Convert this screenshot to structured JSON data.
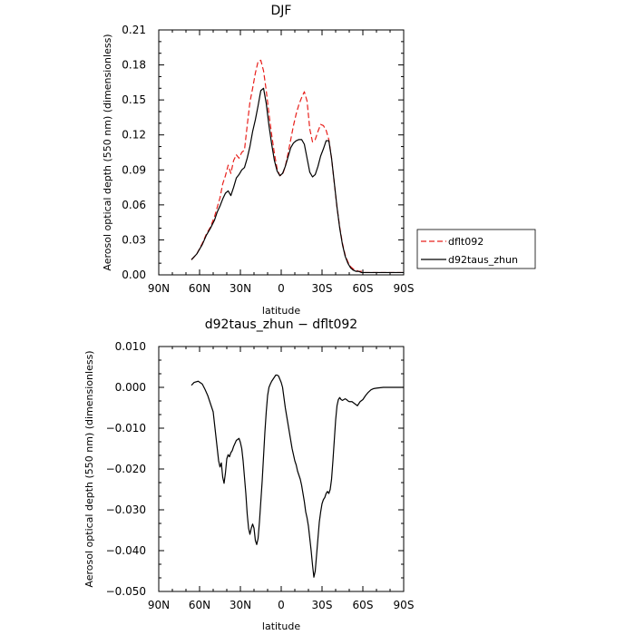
{
  "chart_data": [
    {
      "type": "line",
      "title": "DJF",
      "xlabel": "latitude",
      "ylabel": "Aerosol optical depth (550 nm) (dimensionless)",
      "xlim": [
        90,
        -90
      ],
      "ylim": [
        0,
        0.21
      ],
      "x_ticks": [
        90,
        60,
        30,
        0,
        -30,
        -60,
        -90
      ],
      "x_tick_labels": [
        "90N",
        "60N",
        "30N",
        "0",
        "30S",
        "60S",
        "90S"
      ],
      "y_ticks": [
        0,
        0.03,
        0.06,
        0.09,
        0.12,
        0.15,
        0.18,
        0.21
      ],
      "y_tick_labels": [
        "0.00",
        "0.03",
        "0.06",
        "0.09",
        "0.12",
        "0.15",
        "0.18",
        "0.21"
      ],
      "grid": false,
      "legend_position": "right",
      "series": [
        {
          "name": "dflt092",
          "color": "#e8201c",
          "dash": "dashed",
          "x": [
            66,
            62,
            58,
            55,
            52,
            49,
            47,
            45,
            43,
            41,
            39,
            37,
            35,
            33,
            31,
            29,
            27,
            25,
            23,
            21,
            19,
            17,
            15,
            13,
            11,
            9,
            7,
            5,
            3,
            1,
            -1,
            -3,
            -5,
            -7,
            -9,
            -11,
            -13,
            -15,
            -17,
            -19,
            -21,
            -23,
            -25,
            -27,
            -29,
            -31,
            -33,
            -35,
            -37,
            -39,
            -41,
            -43,
            -45,
            -47,
            -49,
            -51,
            -53,
            -55,
            -57,
            -59,
            -61,
            -63,
            -65,
            -67,
            -70,
            -73,
            -76,
            -80,
            -85,
            -90
          ],
          "y": [
            0.013,
            0.018,
            0.027,
            0.035,
            0.041,
            0.05,
            0.058,
            0.066,
            0.078,
            0.085,
            0.094,
            0.087,
            0.098,
            0.103,
            0.1,
            0.105,
            0.107,
            0.128,
            0.148,
            0.16,
            0.173,
            0.183,
            0.184,
            0.175,
            0.158,
            0.138,
            0.12,
            0.104,
            0.091,
            0.085,
            0.086,
            0.093,
            0.104,
            0.116,
            0.128,
            0.138,
            0.146,
            0.152,
            0.157,
            0.149,
            0.125,
            0.114,
            0.116,
            0.123,
            0.129,
            0.128,
            0.124,
            0.116,
            0.1,
            0.079,
            0.058,
            0.041,
            0.027,
            0.017,
            0.011,
            0.007,
            0.005,
            0.004,
            0.003,
            0.003,
            0.002,
            0.002,
            0.002,
            0.002,
            0.002,
            0.002,
            0.002,
            0.002,
            0.002,
            0.002
          ]
        },
        {
          "name": "d92taus_zhun",
          "color": "#000000",
          "dash": "solid",
          "x": [
            66,
            62,
            58,
            55,
            52,
            49,
            47,
            45,
            43,
            41,
            39,
            37,
            35,
            33,
            31,
            29,
            27,
            25,
            23,
            21,
            19,
            17,
            15,
            13,
            11,
            9,
            7,
            5,
            3,
            1,
            -1,
            -3,
            -5,
            -7,
            -9,
            -11,
            -13,
            -15,
            -17,
            -19,
            -21,
            -23,
            -25,
            -27,
            -29,
            -31,
            -33,
            -35,
            -37,
            -39,
            -41,
            -43,
            -45,
            -47,
            -49,
            -51,
            -53,
            -55,
            -57,
            -59,
            -61,
            -63,
            -65,
            -67,
            -70,
            -73,
            -76,
            -80,
            -85,
            -90
          ],
          "y": [
            0.013,
            0.018,
            0.026,
            0.034,
            0.04,
            0.047,
            0.054,
            0.059,
            0.065,
            0.07,
            0.072,
            0.068,
            0.075,
            0.083,
            0.086,
            0.09,
            0.092,
            0.1,
            0.11,
            0.123,
            0.133,
            0.145,
            0.158,
            0.16,
            0.147,
            0.128,
            0.112,
            0.098,
            0.089,
            0.085,
            0.087,
            0.093,
            0.101,
            0.109,
            0.113,
            0.115,
            0.116,
            0.116,
            0.112,
            0.1,
            0.088,
            0.084,
            0.086,
            0.093,
            0.102,
            0.108,
            0.115,
            0.115,
            0.1,
            0.079,
            0.058,
            0.04,
            0.026,
            0.016,
            0.01,
            0.006,
            0.004,
            0.003,
            0.003,
            0.002,
            0.002,
            0.002,
            0.002,
            0.002,
            0.002,
            0.002,
            0.002,
            0.002,
            0.002,
            0.002
          ]
        }
      ]
    },
    {
      "type": "line",
      "title": "d92taus_zhun − dflt092",
      "xlabel": "latitude",
      "ylabel": "Aerosol optical depth (550 nm) (dimensionless)",
      "xlim": [
        90,
        -90
      ],
      "ylim": [
        -0.05,
        0.01
      ],
      "x_ticks": [
        90,
        60,
        30,
        0,
        -30,
        -60,
        -90
      ],
      "x_tick_labels": [
        "90N",
        "60N",
        "30N",
        "0",
        "30S",
        "60S",
        "90S"
      ],
      "y_ticks": [
        0.01,
        0,
        -0.01,
        -0.02,
        -0.03,
        -0.04,
        -0.05
      ],
      "y_tick_labels": [
        "0.010",
        "0.000",
        "−0.010",
        "−0.020",
        "−0.030",
        "−0.040",
        "−0.050"
      ],
      "grid": false,
      "series": [
        {
          "color": "#000000",
          "dash": "solid",
          "x": [
            66,
            64,
            61,
            58,
            56,
            54,
            52,
            50,
            49,
            48,
            47,
            46,
            45,
            44,
            43,
            42,
            41,
            40,
            39,
            38,
            37,
            36,
            35,
            33,
            31,
            30,
            29,
            28,
            27,
            26,
            25,
            24,
            23,
            22,
            21,
            20,
            19,
            18,
            17,
            16,
            15,
            14,
            13,
            12,
            11,
            10,
            9,
            8,
            7,
            6,
            5,
            4,
            3,
            2,
            1,
            0,
            -1,
            -2,
            -3,
            -4,
            -5,
            -6,
            -7,
            -8,
            -9,
            -10,
            -11,
            -12,
            -13,
            -14,
            -15,
            -16,
            -17,
            -18,
            -19,
            -20,
            -21,
            -22,
            -23,
            -24,
            -25,
            -26,
            -27,
            -28,
            -29,
            -30,
            -31,
            -32,
            -33,
            -34,
            -35,
            -36,
            -37,
            -38,
            -39,
            -40,
            -41,
            -42,
            -43,
            -44,
            -45,
            -46,
            -47,
            -48,
            -49,
            -50,
            -52,
            -54,
            -56,
            -58,
            -60,
            -62,
            -64,
            -66,
            -68,
            -70,
            -75,
            -80,
            -85,
            -90
          ],
          "y": [
            0.0005,
            0.0012,
            0.0015,
            0.0008,
            -0.0005,
            -0.002,
            -0.004,
            -0.006,
            -0.009,
            -0.012,
            -0.015,
            -0.018,
            -0.0195,
            -0.0185,
            -0.022,
            -0.0235,
            -0.021,
            -0.0175,
            -0.0165,
            -0.017,
            -0.016,
            -0.0155,
            -0.0145,
            -0.013,
            -0.0125,
            -0.0135,
            -0.015,
            -0.018,
            -0.022,
            -0.026,
            -0.031,
            -0.0345,
            -0.036,
            -0.0345,
            -0.0335,
            -0.0345,
            -0.0375,
            -0.0385,
            -0.037,
            -0.033,
            -0.028,
            -0.023,
            -0.017,
            -0.011,
            -0.006,
            -0.002,
            0.0,
            0.0008,
            0.0015,
            0.002,
            0.0025,
            0.003,
            0.003,
            0.0028,
            0.002,
            0.0012,
            0.0,
            -0.0025,
            -0.005,
            -0.007,
            -0.009,
            -0.011,
            -0.013,
            -0.015,
            -0.0165,
            -0.018,
            -0.019,
            -0.0205,
            -0.0215,
            -0.0225,
            -0.024,
            -0.026,
            -0.028,
            -0.0305,
            -0.032,
            -0.034,
            -0.037,
            -0.04,
            -0.0435,
            -0.0465,
            -0.045,
            -0.041,
            -0.037,
            -0.033,
            -0.0305,
            -0.0285,
            -0.0275,
            -0.027,
            -0.026,
            -0.0255,
            -0.026,
            -0.025,
            -0.0225,
            -0.018,
            -0.013,
            -0.008,
            -0.0045,
            -0.003,
            -0.0025,
            -0.003,
            -0.0032,
            -0.003,
            -0.0028,
            -0.003,
            -0.0033,
            -0.0035,
            -0.0035,
            -0.004,
            -0.0045,
            -0.0035,
            -0.003,
            -0.002,
            -0.0012,
            -0.0006,
            -0.0003,
            -0.0002,
            0.0,
            0.0,
            0.0,
            0.0
          ]
        }
      ]
    }
  ]
}
